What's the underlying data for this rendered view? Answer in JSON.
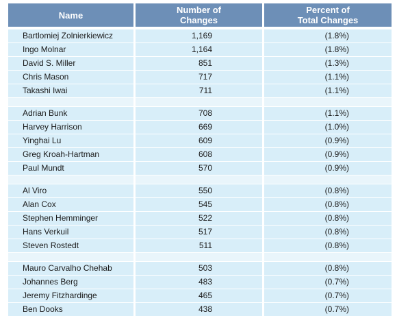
{
  "table": {
    "headers": {
      "name": "Name",
      "number": [
        "Number of",
        "Changes"
      ],
      "percent": [
        "Percent of",
        "Total Changes"
      ]
    },
    "groups": [
      [
        {
          "name": "Bartlomiej Zolnierkiewicz",
          "changes": "1,169",
          "percent": "(1.8%)"
        },
        {
          "name": "Ingo Molnar",
          "changes": "1,164",
          "percent": "(1.8%)"
        },
        {
          "name": "David S. Miller",
          "changes": "851",
          "percent": "(1.3%)"
        },
        {
          "name": "Chris Mason",
          "changes": "717",
          "percent": "(1.1%)"
        },
        {
          "name": "Takashi Iwai",
          "changes": "711",
          "percent": "(1.1%)"
        }
      ],
      [
        {
          "name": "Adrian Bunk",
          "changes": "708",
          "percent": "(1.1%)"
        },
        {
          "name": "Harvey Harrison",
          "changes": "669",
          "percent": "(1.0%)"
        },
        {
          "name": "Yinghai Lu",
          "changes": "609",
          "percent": "(0.9%)"
        },
        {
          "name": "Greg Kroah-Hartman",
          "changes": "608",
          "percent": "(0.9%)"
        },
        {
          "name": "Paul Mundt",
          "changes": "570",
          "percent": "(0.9%)"
        }
      ],
      [
        {
          "name": "Al Viro",
          "changes": "550",
          "percent": "(0.8%)"
        },
        {
          "name": "Alan Cox",
          "changes": "545",
          "percent": "(0.8%)"
        },
        {
          "name": "Stephen Hemminger",
          "changes": "522",
          "percent": "(0.8%)"
        },
        {
          "name": "Hans Verkuil",
          "changes": "517",
          "percent": "(0.8%)"
        },
        {
          "name": "Steven Rostedt",
          "changes": "511",
          "percent": "(0.8%)"
        }
      ],
      [
        {
          "name": "Mauro Carvalho Chehab",
          "changes": "503",
          "percent": "(0.8%)"
        },
        {
          "name": "Johannes Berg",
          "changes": "483",
          "percent": "(0.7%)"
        },
        {
          "name": "Jeremy Fitzhardinge",
          "changes": "465",
          "percent": "(0.7%)"
        },
        {
          "name": "Ben Dooks",
          "changes": "438",
          "percent": "(0.7%)"
        }
      ]
    ]
  }
}
